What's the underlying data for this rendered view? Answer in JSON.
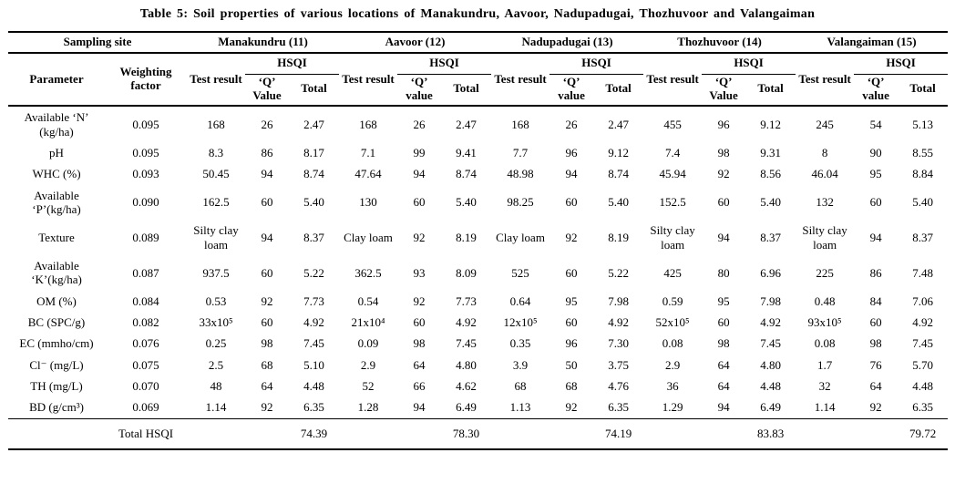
{
  "title": "Table 5: Soil properties of various locations of Manakundru, Aavoor, Nadupadugai, Thozhuvoor and Valangaiman",
  "header": {
    "sampling_site_label": "Sampling site",
    "parameter_label": "Parameter",
    "weighting_label": "Weighting factor",
    "test_result_label": "Test result",
    "hsqi_label": "HSQI",
    "total_label": "Total",
    "locations": [
      {
        "name": "Manakundru (11)",
        "q_label": "‘Q’ Value"
      },
      {
        "name": "Aavoor (12)",
        "q_label": "‘Q’ value"
      },
      {
        "name": "Nadupadugai (13)",
        "q_label": "‘Q’ value"
      },
      {
        "name": "Thozhuvoor (14)",
        "q_label": "‘Q’ Value"
      },
      {
        "name": "Valangaiman (15)",
        "q_label": "‘Q’ value"
      }
    ]
  },
  "rows": [
    {
      "parameter": "Available ‘N’ (kg/ha)",
      "weight": "0.095",
      "cells": [
        [
          "168",
          "26",
          "2.47"
        ],
        [
          "168",
          "26",
          "2.47"
        ],
        [
          "168",
          "26",
          "2.47"
        ],
        [
          "455",
          "96",
          "9.12"
        ],
        [
          "245",
          "54",
          "5.13"
        ]
      ]
    },
    {
      "parameter": "pH",
      "weight": "0.095",
      "cells": [
        [
          "8.3",
          "86",
          "8.17"
        ],
        [
          "7.1",
          "99",
          "9.41"
        ],
        [
          "7.7",
          "96",
          "9.12"
        ],
        [
          "7.4",
          "98",
          "9.31"
        ],
        [
          "8",
          "90",
          "8.55"
        ]
      ]
    },
    {
      "parameter": "WHC (%)",
      "weight": "0.093",
      "cells": [
        [
          "50.45",
          "94",
          "8.74"
        ],
        [
          "47.64",
          "94",
          "8.74"
        ],
        [
          "48.98",
          "94",
          "8.74"
        ],
        [
          "45.94",
          "92",
          "8.56"
        ],
        [
          "46.04",
          "95",
          "8.84"
        ]
      ]
    },
    {
      "parameter": "Available ‘P’(kg/ha)",
      "weight": "0.090",
      "cells": [
        [
          "162.5",
          "60",
          "5.40"
        ],
        [
          "130",
          "60",
          "5.40"
        ],
        [
          "98.25",
          "60",
          "5.40"
        ],
        [
          "152.5",
          "60",
          "5.40"
        ],
        [
          "132",
          "60",
          "5.40"
        ]
      ]
    },
    {
      "parameter": "Texture",
      "weight": "0.089",
      "cells": [
        [
          "Silty clay loam",
          "94",
          "8.37"
        ],
        [
          "Clay loam",
          "92",
          "8.19"
        ],
        [
          "Clay loam",
          "92",
          "8.19"
        ],
        [
          "Silty clay loam",
          "94",
          "8.37"
        ],
        [
          "Silty clay loam",
          "94",
          "8.37"
        ]
      ]
    },
    {
      "parameter": "Available ‘K’(kg/ha)",
      "weight": "0.087",
      "cells": [
        [
          "937.5",
          "60",
          "5.22"
        ],
        [
          "362.5",
          "93",
          "8.09"
        ],
        [
          "525",
          "60",
          "5.22"
        ],
        [
          "425",
          "80",
          "6.96"
        ],
        [
          "225",
          "86",
          "7.48"
        ]
      ]
    },
    {
      "parameter": "OM (%)",
      "weight": "0.084",
      "cells": [
        [
          "0.53",
          "92",
          "7.73"
        ],
        [
          "0.54",
          "92",
          "7.73"
        ],
        [
          "0.64",
          "95",
          "7.98"
        ],
        [
          "0.59",
          "95",
          "7.98"
        ],
        [
          "0.48",
          "84",
          "7.06"
        ]
      ]
    },
    {
      "parameter": "BC (SPC/g)",
      "weight": "0.082",
      "cells": [
        [
          "33x10⁵",
          "60",
          "4.92"
        ],
        [
          "21x10⁴",
          "60",
          "4.92"
        ],
        [
          "12x10⁵",
          "60",
          "4.92"
        ],
        [
          "52x10⁵",
          "60",
          "4.92"
        ],
        [
          "93x10⁵",
          "60",
          "4.92"
        ]
      ]
    },
    {
      "parameter": "EC (mmho/cm)",
      "weight": "0.076",
      "cells": [
        [
          "0.25",
          "98",
          "7.45"
        ],
        [
          "0.09",
          "98",
          "7.45"
        ],
        [
          "0.35",
          "96",
          "7.30"
        ],
        [
          "0.08",
          "98",
          "7.45"
        ],
        [
          "0.08",
          "98",
          "7.45"
        ]
      ]
    },
    {
      "parameter": "Cl⁻ (mg/L)",
      "weight": "0.075",
      "cells": [
        [
          "2.5",
          "68",
          "5.10"
        ],
        [
          "2.9",
          "64",
          "4.80"
        ],
        [
          "3.9",
          "50",
          "3.75"
        ],
        [
          "2.9",
          "64",
          "4.80"
        ],
        [
          "1.7",
          "76",
          "5.70"
        ]
      ]
    },
    {
      "parameter": "TH (mg/L)",
      "weight": "0.070",
      "cells": [
        [
          "48",
          "64",
          "4.48"
        ],
        [
          "52",
          "66",
          "4.62"
        ],
        [
          "68",
          "68",
          "4.76"
        ],
        [
          "36",
          "64",
          "4.48"
        ],
        [
          "32",
          "64",
          "4.48"
        ]
      ]
    },
    {
      "parameter": "BD (g/cm³)",
      "weight": "0.069",
      "cells": [
        [
          "1.14",
          "92",
          "6.35"
        ],
        [
          "1.28",
          "94",
          "6.49"
        ],
        [
          "1.13",
          "92",
          "6.35"
        ],
        [
          "1.29",
          "94",
          "6.49"
        ],
        [
          "1.14",
          "92",
          "6.35"
        ]
      ]
    }
  ],
  "footer": {
    "label": "Total HSQI",
    "values": [
      "74.39",
      "78.30",
      "74.19",
      "83.83",
      "79.72"
    ]
  }
}
